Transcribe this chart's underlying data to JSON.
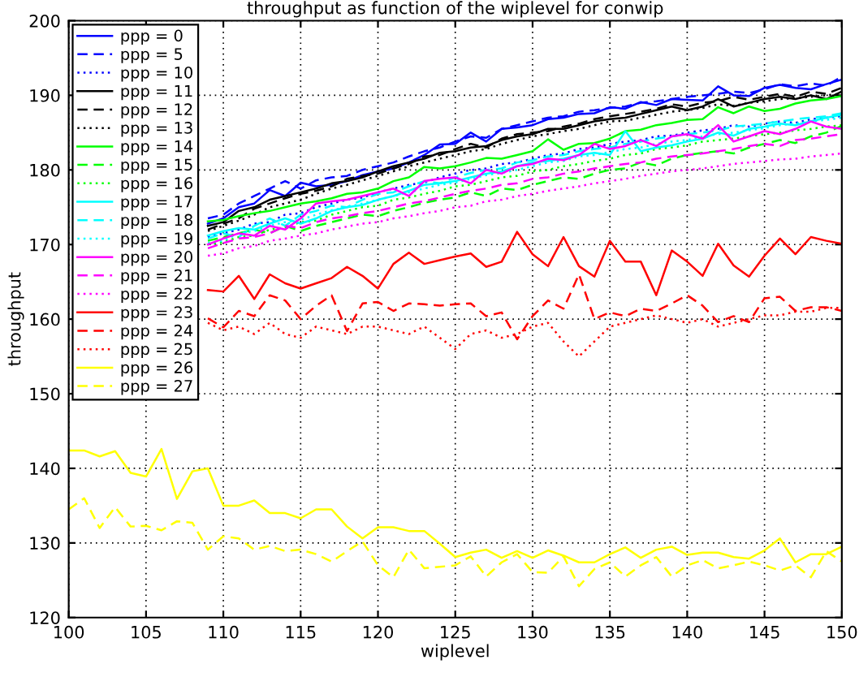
{
  "chart_data": {
    "type": "line",
    "title": "throughput as function of the wiplevel for conwip",
    "xlabel": "wiplevel",
    "ylabel": "throughput",
    "xlim": [
      100,
      150
    ],
    "xticks": [
      100,
      105,
      110,
      115,
      120,
      125,
      130,
      135,
      140,
      145,
      150
    ],
    "ylim": [
      120,
      200
    ],
    "yticks": [
      120,
      130,
      140,
      150,
      160,
      170,
      180,
      190,
      200
    ],
    "grid": true,
    "legend": "top left",
    "marker": "none",
    "x": [
      100,
      101,
      102,
      103,
      104,
      105,
      106,
      107,
      108,
      109,
      110,
      111,
      112,
      113,
      114,
      115,
      116,
      117,
      118,
      119,
      120,
      121,
      122,
      123,
      124,
      125,
      126,
      127,
      128,
      129,
      130,
      131,
      132,
      133,
      134,
      135,
      136,
      137,
      138,
      139,
      140,
      141,
      142,
      143,
      144,
      145,
      146,
      147,
      148,
      149,
      150
    ],
    "series": [
      {
        "name": "ppp = 0",
        "color": "#0000ff",
        "line_style": "solid",
        "values": [
          null,
          null,
          null,
          null,
          null,
          null,
          null,
          null,
          null,
          172.8,
          173.5,
          175,
          175.5,
          177.3,
          176.5,
          178.3,
          177.8,
          178,
          178.5,
          179.3,
          179.8,
          180.2,
          181,
          182,
          183.4,
          183.5,
          185,
          183.8,
          185.5,
          185.7,
          186,
          186.8,
          187,
          187.5,
          187.6,
          188.4,
          188.2,
          189.1,
          188.7,
          189.5,
          189.4,
          189.3,
          191.2,
          190,
          189.9,
          191,
          191.4,
          191,
          190.8,
          191.5,
          192.1
        ]
      },
      {
        "name": "ppp = 5",
        "color": "#0000ff",
        "line_style": "dashed",
        "values": [
          null,
          null,
          null,
          null,
          null,
          null,
          null,
          null,
          null,
          173.5,
          174,
          175.5,
          176.5,
          177.5,
          178.5,
          177.5,
          178.6,
          179,
          179.2,
          180,
          180.5,
          181,
          181.8,
          182.5,
          183,
          183.8,
          184.5,
          184.3,
          185.5,
          186,
          186.5,
          187,
          187.2,
          187.8,
          188,
          188.3,
          188.5,
          189,
          189.2,
          189.5,
          189.8,
          190,
          190.2,
          190.5,
          190.3,
          190.8,
          191.5,
          191.2,
          191.6,
          191.3,
          192.5
        ]
      },
      {
        "name": "ppp = 10",
        "color": "#0000ff",
        "line_style": "dotted",
        "values": [
          null,
          null,
          null,
          null,
          null,
          null,
          null,
          null,
          null,
          171,
          171.5,
          172,
          172.8,
          173,
          174,
          174.2,
          175,
          175.5,
          176,
          176.3,
          177,
          177.5,
          178,
          178.3,
          179,
          179.5,
          180,
          180.2,
          180.8,
          181,
          181.5,
          182,
          182.2,
          182.8,
          183,
          183.5,
          183.8,
          184,
          184.5,
          184.6,
          185,
          185.3,
          185.5,
          186,
          185.8,
          186.2,
          186.5,
          186.3,
          186.8,
          187,
          187.2
        ]
      },
      {
        "name": "ppp = 11",
        "color": "#000000",
        "line_style": "solid",
        "values": [
          null,
          null,
          null,
          null,
          null,
          null,
          null,
          null,
          null,
          172.5,
          173,
          174.5,
          175,
          176,
          176.5,
          177,
          177.5,
          178.2,
          178.5,
          179,
          179.8,
          180.5,
          181,
          181.5,
          182.3,
          182.5,
          183,
          183.2,
          184,
          184.5,
          184.8,
          185.5,
          185.5,
          186,
          186.5,
          186.8,
          187,
          187.5,
          188,
          188.5,
          188,
          188.5,
          189.5,
          188.5,
          189,
          189.5,
          189.8,
          189.5,
          190,
          189.5,
          190.5
        ]
      },
      {
        "name": "ppp = 12",
        "color": "#000000",
        "line_style": "dashed",
        "values": [
          null,
          null,
          null,
          null,
          null,
          null,
          null,
          null,
          null,
          172,
          172.8,
          173.5,
          174.8,
          175.5,
          176.2,
          176.8,
          177.2,
          177.8,
          178.8,
          179.2,
          179.5,
          180.2,
          180.8,
          181.8,
          182,
          182.8,
          183.5,
          183,
          184.2,
          184.8,
          185,
          185.2,
          185.8,
          186.2,
          186.8,
          187.2,
          187.5,
          187.8,
          188.2,
          188.8,
          188.5,
          189,
          189.2,
          189.8,
          189.4,
          189.8,
          190.2,
          189.8,
          190.5,
          190.2,
          191
        ]
      },
      {
        "name": "ppp = 13",
        "color": "#000000",
        "line_style": "dotted",
        "values": [
          null,
          null,
          null,
          null,
          null,
          null,
          null,
          null,
          null,
          171.8,
          172.5,
          173.2,
          174,
          175,
          175.5,
          176,
          176.8,
          177.5,
          178,
          178.6,
          179.2,
          179.8,
          180.5,
          181,
          181.5,
          182,
          182.5,
          182.8,
          183.5,
          184,
          184.5,
          184.8,
          185.2,
          185.5,
          186,
          186.5,
          186.6,
          187,
          187.4,
          187.8,
          188,
          188.3,
          188.8,
          188.6,
          189,
          189.2,
          189.5,
          189.6,
          189.8,
          190,
          190.2
        ]
      },
      {
        "name": "ppp = 14",
        "color": "#00ff00",
        "line_style": "solid",
        "values": [
          null,
          null,
          null,
          null,
          null,
          null,
          null,
          null,
          null,
          173.1,
          173.3,
          173.8,
          174.2,
          174.5,
          175,
          175.5,
          175.8,
          176.2,
          176.8,
          177,
          177.5,
          178.5,
          179,
          180.4,
          180.2,
          180.5,
          181,
          181.6,
          181.5,
          182,
          182.5,
          184.1,
          182.7,
          183.5,
          183.6,
          184.2,
          185.2,
          185.4,
          186,
          186.3,
          186.7,
          186.8,
          188.4,
          187.6,
          188.5,
          187.9,
          188.2,
          188.9,
          189.3,
          189.5,
          189.9
        ]
      },
      {
        "name": "ppp = 15",
        "color": "#00ff00",
        "line_style": "dashed",
        "values": [
          null,
          null,
          null,
          null,
          null,
          null,
          null,
          null,
          null,
          170.5,
          171,
          171.5,
          172,
          171.5,
          172.5,
          171.8,
          172.5,
          173,
          173.5,
          174,
          173.8,
          174.5,
          175,
          175.6,
          176,
          176.3,
          177,
          176.5,
          177.5,
          177.3,
          178,
          178.5,
          179,
          178.8,
          179.5,
          180,
          180.2,
          181,
          180.6,
          181.5,
          182,
          182.3,
          182.5,
          182.2,
          183,
          183.5,
          184,
          183.6,
          184.5,
          185,
          185.9
        ]
      },
      {
        "name": "ppp = 16",
        "color": "#00ff00",
        "line_style": "dotted",
        "values": [
          null,
          null,
          null,
          null,
          null,
          null,
          null,
          null,
          null,
          170,
          170.3,
          171,
          171.2,
          172,
          172.3,
          173,
          173.2,
          174,
          174.5,
          175,
          175.2,
          176,
          176.3,
          176.8,
          177.2,
          177.8,
          178,
          178.5,
          179,
          179.2,
          179.8,
          180,
          180.5,
          180.8,
          181.2,
          181.5,
          182,
          182.2,
          182.8,
          183,
          183.3,
          183.8,
          184,
          184.2,
          184.5,
          184.8,
          185,
          185.3,
          185.5,
          185.8,
          186
        ]
      },
      {
        "name": "ppp = 17",
        "color": "#00ffff",
        "line_style": "solid",
        "values": [
          null,
          null,
          null,
          null,
          null,
          null,
          null,
          null,
          null,
          171.2,
          171.8,
          172.2,
          172,
          172.8,
          173.5,
          172.8,
          173.5,
          174.5,
          175,
          175.3,
          176,
          176.5,
          177.2,
          178,
          178.2,
          178.5,
          179,
          179.5,
          179.8,
          180.5,
          181,
          181.2,
          181.5,
          182,
          182.3,
          182,
          185.2,
          182.5,
          183,
          183.3,
          183.8,
          184.2,
          185,
          184.6,
          185.5,
          185.8,
          186.2,
          186,
          186.5,
          187,
          187.4
        ]
      },
      {
        "name": "ppp = 18",
        "color": "#00ffff",
        "line_style": "dashed",
        "values": [
          null,
          null,
          null,
          null,
          null,
          null,
          null,
          null,
          null,
          170.8,
          171.5,
          171,
          172.5,
          173.5,
          172.5,
          174,
          174.5,
          175.2,
          175,
          176,
          176.8,
          177,
          177.8,
          178.5,
          178.2,
          179,
          179.6,
          180,
          180.2,
          181,
          181.3,
          181.8,
          182,
          182.5,
          182.8,
          183,
          183.5,
          183.8,
          184.2,
          184.5,
          184.8,
          185,
          185.3,
          185.8,
          186,
          186.2,
          186.5,
          186.8,
          187,
          187.2,
          187.6
        ]
      },
      {
        "name": "ppp = 19",
        "color": "#00ffff",
        "line_style": "dotted",
        "values": [
          null,
          null,
          null,
          null,
          null,
          null,
          null,
          null,
          null,
          170.2,
          170.5,
          171.5,
          171.8,
          172.5,
          173,
          173.3,
          174,
          174.6,
          175,
          175.5,
          176,
          176.5,
          177,
          177.5,
          178,
          178.3,
          178.8,
          179.3,
          179.6,
          180,
          180.5,
          181,
          181.2,
          181.8,
          182,
          182.4,
          182.8,
          183,
          183.5,
          183.8,
          184,
          184.5,
          184.8,
          185,
          185.3,
          185.6,
          186,
          186.2,
          186.5,
          186.7,
          187
        ]
      },
      {
        "name": "ppp = 20",
        "color": "#ff00ff",
        "line_style": "solid",
        "values": [
          null,
          null,
          null,
          null,
          null,
          null,
          null,
          null,
          null,
          170,
          170.8,
          171.5,
          171.2,
          172.5,
          172,
          173.5,
          175.5,
          175.8,
          176,
          176.5,
          177,
          177.5,
          176.5,
          178.5,
          178.8,
          179,
          178.2,
          180,
          179.5,
          180.5,
          180.8,
          181.5,
          181.3,
          182,
          183.5,
          182.8,
          183.2,
          184,
          183.2,
          184.5,
          184.8,
          184.2,
          186,
          183.8,
          184.5,
          185.2,
          184.8,
          185.5,
          186.5,
          185.8,
          185.5
        ]
      },
      {
        "name": "ppp = 21",
        "color": "#ff00ff",
        "line_style": "dashed",
        "values": [
          null,
          null,
          null,
          null,
          null,
          null,
          null,
          null,
          null,
          169.5,
          170.2,
          170.8,
          171,
          171.5,
          172.5,
          172.2,
          173,
          173.5,
          173.8,
          174.2,
          174.5,
          175,
          175.5,
          175.8,
          176.3,
          176.8,
          177.2,
          177.5,
          178,
          178.2,
          178.8,
          179,
          179.5,
          179.8,
          180.2,
          180.5,
          180.8,
          181,
          181.5,
          181.8,
          182,
          182.2,
          182.5,
          182.8,
          183.2,
          183.5,
          183.2,
          184,
          184.2,
          184.5,
          184.8
        ]
      },
      {
        "name": "ppp = 22",
        "color": "#ff00ff",
        "line_style": "dotted",
        "values": [
          null,
          null,
          null,
          null,
          null,
          null,
          null,
          null,
          null,
          168.5,
          168.8,
          169.5,
          169.8,
          170.5,
          170.8,
          171.2,
          171.5,
          172,
          172.4,
          172.8,
          173,
          173.5,
          173.8,
          174.2,
          174.5,
          175,
          175.2,
          175.8,
          176,
          176.5,
          176.8,
          177.2,
          177.5,
          177.8,
          178.2,
          178.5,
          178.8,
          179.2,
          179.5,
          179.8,
          180,
          180.2,
          180.5,
          180.8,
          181,
          181.2,
          181.4,
          181.5,
          181.8,
          182,
          182.2
        ]
      },
      {
        "name": "ppp = 23",
        "color": "#ff0000",
        "line_style": "solid",
        "values": [
          null,
          null,
          null,
          null,
          null,
          null,
          null,
          null,
          null,
          163.9,
          163.7,
          165.8,
          162.7,
          166,
          164.8,
          164.1,
          164.8,
          165.5,
          167,
          165.8,
          164.1,
          167.4,
          168.9,
          167.4,
          167.9,
          168.4,
          168.8,
          167,
          167.7,
          171.7,
          168.7,
          167.1,
          171,
          167.1,
          165.7,
          170.5,
          167.7,
          167.7,
          163.2,
          169.2,
          167.7,
          165.8,
          170.1,
          167.2,
          165.7,
          168.5,
          170.8,
          168.7,
          171,
          170.5,
          170.1
        ]
      },
      {
        "name": "ppp = 24",
        "color": "#ff0000",
        "line_style": "dashed",
        "values": [
          null,
          null,
          null,
          null,
          null,
          null,
          null,
          null,
          null,
          160.1,
          158.9,
          161.1,
          160.4,
          163.2,
          162.5,
          160,
          161.8,
          163.2,
          158.4,
          162.1,
          162.3,
          161.1,
          162.1,
          162,
          161.8,
          162,
          162.1,
          160.4,
          160.9,
          157.3,
          160.4,
          162.5,
          161.4,
          166,
          160,
          160.9,
          160.4,
          161.4,
          161.1,
          162.1,
          163.2,
          161.8,
          159.6,
          160.4,
          159.6,
          162.8,
          163,
          161.1,
          161.6,
          161.6,
          161.1
        ]
      },
      {
        "name": "ppp = 25",
        "color": "#ff0000",
        "line_style": "dotted",
        "values": [
          null,
          null,
          null,
          null,
          null,
          null,
          null,
          null,
          null,
          159.5,
          158.5,
          159,
          158,
          159.5,
          158,
          157.5,
          159,
          158.5,
          158,
          159,
          159,
          158.5,
          158,
          159,
          157.5,
          156,
          158,
          158.5,
          157.5,
          158,
          159,
          159.5,
          157,
          155,
          157,
          159,
          159.5,
          160,
          160.5,
          160,
          159.5,
          160,
          159,
          159.5,
          160,
          160.5,
          160.5,
          161,
          161,
          161.5,
          161.5
        ]
      },
      {
        "name": "ppp = 26",
        "color": "#ffff00",
        "line_style": "solid",
        "values": [
          142.4,
          142.4,
          141.6,
          142.3,
          139.4,
          138.9,
          142.6,
          135.9,
          139.6,
          140,
          135,
          135,
          135.7,
          134,
          134,
          133.3,
          134.5,
          134.5,
          132.2,
          130.6,
          132.1,
          132.1,
          131.6,
          131.6,
          129.9,
          128.1,
          128.7,
          129.1,
          128,
          128.9,
          128,
          129,
          128.3,
          127.4,
          127.4,
          128.5,
          129.4,
          128,
          129.1,
          129.5,
          128.4,
          128.7,
          128.7,
          128.1,
          127.9,
          129,
          130.6,
          127.4,
          128.5,
          128.5,
          129.5
        ]
      },
      {
        "name": "ppp = 27",
        "color": "#ffff00",
        "line_style": "dashed",
        "values": [
          134.5,
          136,
          132,
          134.8,
          132.2,
          132.3,
          131.7,
          132.9,
          132.7,
          129.1,
          130.9,
          130.6,
          129.1,
          129.6,
          128.9,
          129.1,
          128.5,
          127.5,
          128.9,
          130.2,
          127,
          125.4,
          129.1,
          126.6,
          126.8,
          127,
          128.2,
          125.5,
          127.4,
          128.5,
          126.1,
          126,
          128.2,
          124.2,
          126.5,
          127.4,
          125.5,
          127,
          128.1,
          125.5,
          127,
          127.7,
          126.6,
          127,
          127.5,
          127,
          126.3,
          127,
          125.4,
          128.9,
          127.5
        ]
      }
    ]
  }
}
